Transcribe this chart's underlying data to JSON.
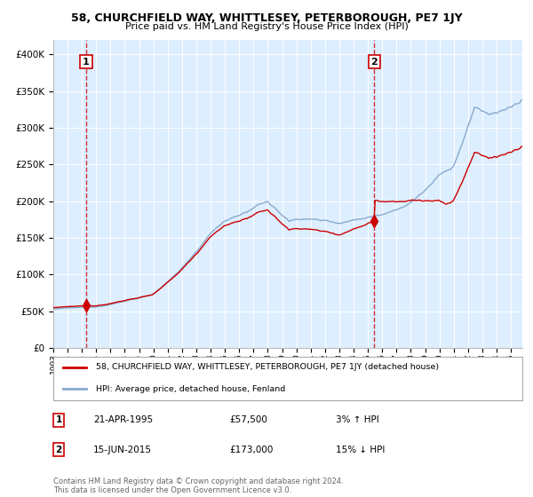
{
  "title": "58, CHURCHFIELD WAY, WHITTLESEY, PETERBOROUGH, PE7 1JY",
  "subtitle": "Price paid vs. HM Land Registry's House Price Index (HPI)",
  "legend_property": "58, CHURCHFIELD WAY, WHITTLESEY, PETERBOROUGH, PE7 1JY (detached house)",
  "legend_hpi": "HPI: Average price, detached house, Fenland",
  "note": "Contains HM Land Registry data © Crown copyright and database right 2024.\nThis data is licensed under the Open Government Licence v3.0.",
  "sale1_date": "21-APR-1995",
  "sale1_price": "£57,500",
  "sale1_hpi": "3% ↑ HPI",
  "sale1_year": 1995.3,
  "sale1_value": 57500,
  "sale2_date": "15-JUN-2015",
  "sale2_price": "£173,000",
  "sale2_hpi": "15% ↓ HPI",
  "sale2_year": 2015.45,
  "sale2_value": 173000,
  "property_color": "#cc0000",
  "hpi_color": "#88aacc",
  "bg_color": "#ddeeff",
  "vline_color": "#cc0000",
  "ylim": [
    0,
    420000
  ],
  "yticks": [
    0,
    50000,
    100000,
    150000,
    200000,
    250000,
    300000,
    350000,
    400000
  ],
  "ytick_labels": [
    "£0",
    "£50K",
    "£100K",
    "£150K",
    "£200K",
    "£250K",
    "£300K",
    "£350K",
    "£400K"
  ],
  "xlim_start": 1993.0,
  "xlim_end": 2025.8
}
